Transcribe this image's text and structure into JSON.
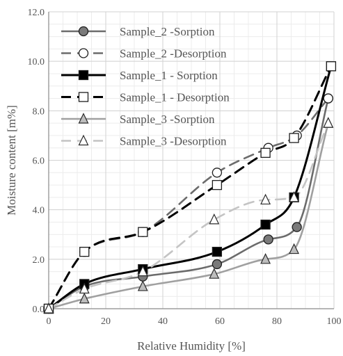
{
  "chart_data": {
    "type": "line",
    "xlabel": "Relative Humidity  [%]",
    "ylabel": "Moisture content [m%]",
    "xlim": [
      0,
      100
    ],
    "ylim": [
      0,
      12
    ],
    "xticks": [
      0,
      20,
      40,
      60,
      80,
      100
    ],
    "yticks": [
      0,
      2,
      4,
      6,
      8,
      10,
      12
    ],
    "xtick_labels": [
      "0",
      "20",
      "40",
      "60",
      "80",
      "100"
    ],
    "ytick_labels": [
      "0.0",
      "2.0",
      "4.0",
      "6.0",
      "8.0",
      "10.0",
      "12.0"
    ],
    "grid": true,
    "legend_position": "top-left",
    "series": [
      {
        "name": "Sample_2 -Sorption",
        "x": [
          0,
          12.5,
          33,
          59,
          77,
          87,
          98
        ],
        "y": [
          0,
          0.9,
          1.3,
          1.8,
          2.8,
          3.3,
          8.5
        ],
        "color": "#6b6b6b",
        "dash": "solid",
        "marker": "circle",
        "filled": true
      },
      {
        "name": "Sample_2 -Desorption",
        "x": [
          0,
          12.5,
          33,
          59,
          77,
          87,
          98
        ],
        "y": [
          0,
          2.3,
          3.1,
          5.5,
          6.5,
          7.0,
          8.5
        ],
        "color": "#6b6b6b",
        "dash": "dashed",
        "marker": "circle",
        "filled": false
      },
      {
        "name": "Sample_1 - Sorption",
        "x": [
          0,
          12.5,
          33,
          59,
          76,
          86,
          99
        ],
        "y": [
          0,
          1.0,
          1.6,
          2.3,
          3.4,
          4.5,
          9.8
        ],
        "color": "#000000",
        "dash": "solid",
        "marker": "square",
        "filled": true
      },
      {
        "name": "Sample_1 - Desorption",
        "x": [
          0,
          12.5,
          33,
          59,
          76,
          86,
          99
        ],
        "y": [
          0,
          2.3,
          3.1,
          5.0,
          6.3,
          6.9,
          9.8
        ],
        "color": "#000000",
        "dash": "dashed",
        "marker": "square",
        "filled": false
      },
      {
        "name": "Sample_3 -Sorption",
        "x": [
          0,
          12.5,
          33,
          58,
          76,
          86,
          98
        ],
        "y": [
          0,
          0.4,
          0.9,
          1.4,
          2.0,
          2.4,
          7.5
        ],
        "color": "#a0a0a0",
        "dash": "solid",
        "marker": "triangle",
        "filled": true
      },
      {
        "name": "Sample_3 -Desorption",
        "x": [
          0,
          12.5,
          33,
          58,
          76,
          86,
          98
        ],
        "y": [
          0,
          0.8,
          1.5,
          3.6,
          4.4,
          4.5,
          7.5
        ],
        "color": "#c4c4c4",
        "dash": "dashed",
        "marker": "triangle",
        "filled": false
      }
    ]
  }
}
